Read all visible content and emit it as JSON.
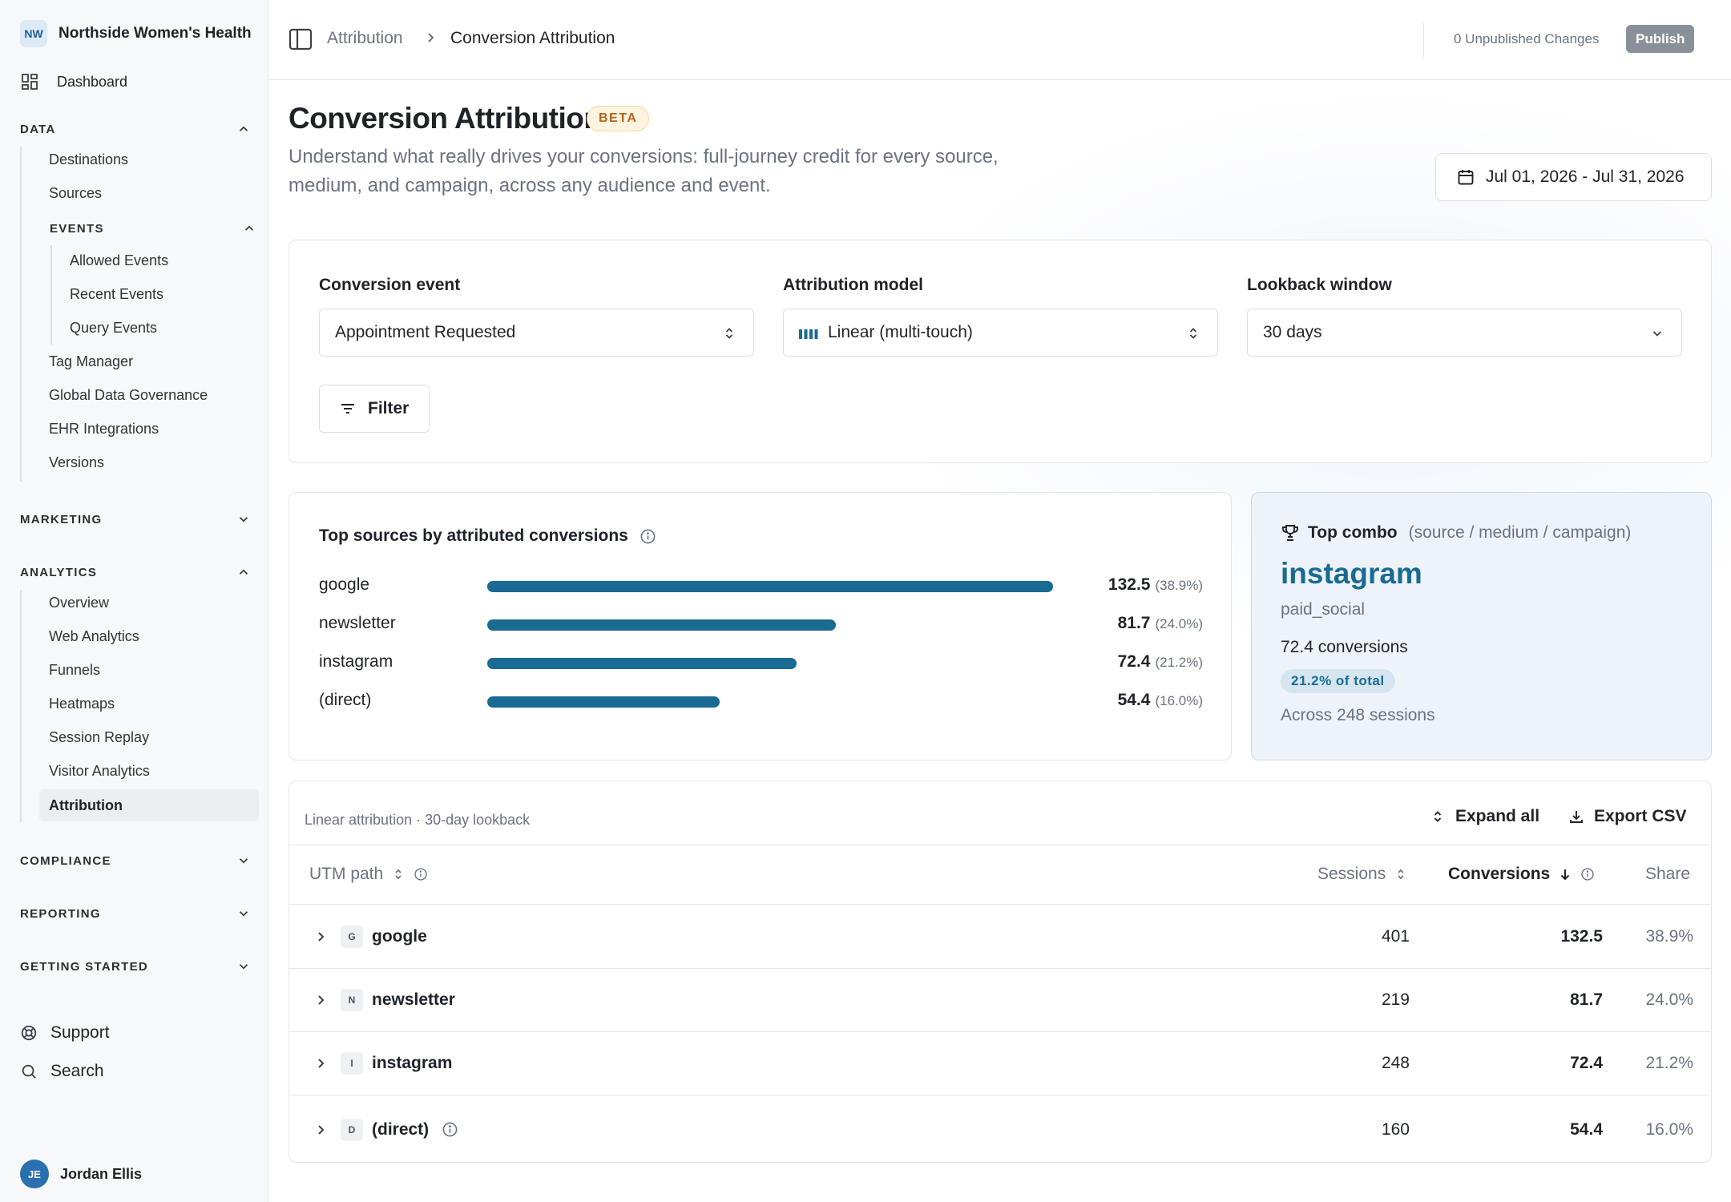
{
  "org": {
    "initials": "NW",
    "name": "Northside Women's Health"
  },
  "sidebar": {
    "dashboard": "Dashboard",
    "data": {
      "label": "DATA",
      "items": [
        "Destinations",
        "Sources"
      ],
      "events": {
        "label": "EVENTS",
        "items": [
          "Allowed Events",
          "Recent Events",
          "Query Events"
        ]
      },
      "items_after": [
        "Tag Manager",
        "Global Data Governance",
        "EHR Integrations",
        "Versions"
      ]
    },
    "marketing": {
      "label": "MARKETING"
    },
    "analytics": {
      "label": "ANALYTICS",
      "items": [
        "Overview",
        "Web Analytics",
        "Funnels",
        "Heatmaps",
        "Session Replay",
        "Visitor Analytics",
        "Attribution"
      ]
    },
    "compliance": {
      "label": "COMPLIANCE"
    },
    "reporting": {
      "label": "REPORTING"
    },
    "getting_started": {
      "label": "GETTING STARTED"
    },
    "support": "Support",
    "search": "Search",
    "user": {
      "initials": "JE",
      "name": "Jordan Ellis"
    }
  },
  "header": {
    "breadcrumb": [
      "Attribution",
      "Conversion Attribution"
    ],
    "unpublished": "0 Unpublished Changes",
    "publish": "Publish"
  },
  "page": {
    "title": "Conversion Attribution",
    "badge": "BETA",
    "subtitle": "Understand what really drives your conversions: full-journey credit for every source, medium, and campaign, across any audience and event.",
    "date_range": "Jul 01, 2026 - Jul 31, 2026"
  },
  "filters": {
    "conversion_event": {
      "label": "Conversion event",
      "value": "Appointment Requested"
    },
    "attribution_model": {
      "label": "Attribution model",
      "value": "Linear (multi-touch)"
    },
    "lookback_window": {
      "label": "Lookback window",
      "value": "30 days"
    },
    "filter_button": "Filter"
  },
  "top_sources": {
    "title": "Top sources by attributed conversions",
    "max": 132.5,
    "rows": [
      {
        "label": "google",
        "value": 132.5,
        "value_text": "132.5",
        "pct": "(38.9%)"
      },
      {
        "label": "newsletter",
        "value": 81.7,
        "value_text": "81.7",
        "pct": "(24.0%)"
      },
      {
        "label": "instagram",
        "value": 72.4,
        "value_text": "72.4",
        "pct": "(21.2%)"
      },
      {
        "label": "(direct)",
        "value": 54.4,
        "value_text": "54.4",
        "pct": "(16.0%)"
      }
    ]
  },
  "top_combo": {
    "label": "Top combo",
    "hint": "(source / medium / campaign)",
    "source": "instagram",
    "medium": "paid_social",
    "conversions": "72.4 conversions",
    "share": "21.2% of total",
    "sessions": "Across 248 sessions"
  },
  "table": {
    "caption": "Linear attribution · 30-day lookback",
    "expand_all": "Expand all",
    "export_csv": "Export CSV",
    "headers": {
      "path": "UTM path",
      "sessions": "Sessions",
      "conversions": "Conversions",
      "share": "Share"
    },
    "rows": [
      {
        "letter": "G",
        "name": "google",
        "sessions": "401",
        "conversions": "132.5",
        "share": "38.9%"
      },
      {
        "letter": "N",
        "name": "newsletter",
        "sessions": "219",
        "conversions": "81.7",
        "share": "24.0%"
      },
      {
        "letter": "I",
        "name": "instagram",
        "sessions": "248",
        "conversions": "72.4",
        "share": "21.2%"
      },
      {
        "letter": "D",
        "name": "(direct)",
        "sessions": "160",
        "conversions": "54.4",
        "share": "16.0%"
      }
    ]
  },
  "colors": {
    "accent": "#1a6b93",
    "beta": "#b5651d",
    "publish": "#8a9099"
  }
}
